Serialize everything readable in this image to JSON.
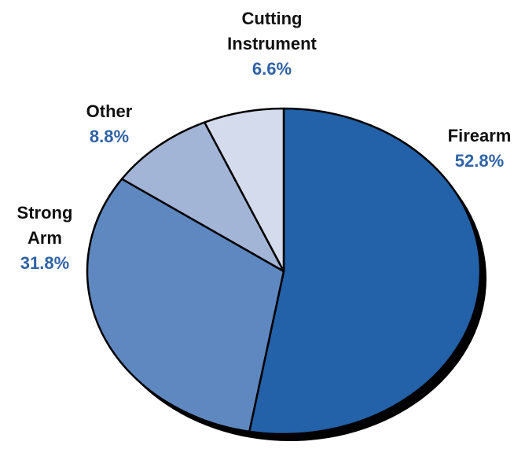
{
  "chart_data": {
    "type": "pie",
    "categories": [
      "Firearm",
      "Strong Arm",
      "Other",
      "Cutting Instrument"
    ],
    "values": [
      52.8,
      31.8,
      8.8,
      6.6
    ],
    "colors": [
      "#2361a8",
      "#5f88c0",
      "#a3b5d7",
      "#d3dbec"
    ],
    "label_color": "#2f62a6",
    "shadow_color": "#000000",
    "labels": [
      {
        "category": "Firearm",
        "lines": [
          "Firearm"
        ],
        "pct": "52.8%"
      },
      {
        "category": "Strong Arm",
        "lines": [
          "Strong",
          "Arm"
        ],
        "pct": "31.8%"
      },
      {
        "category": "Other",
        "lines": [
          "Other"
        ],
        "pct": "8.8%"
      },
      {
        "category": "Cutting Instrument",
        "lines": [
          "Cutting",
          "Instrument"
        ],
        "pct": "6.6%"
      }
    ],
    "title": "",
    "legend": "none"
  }
}
